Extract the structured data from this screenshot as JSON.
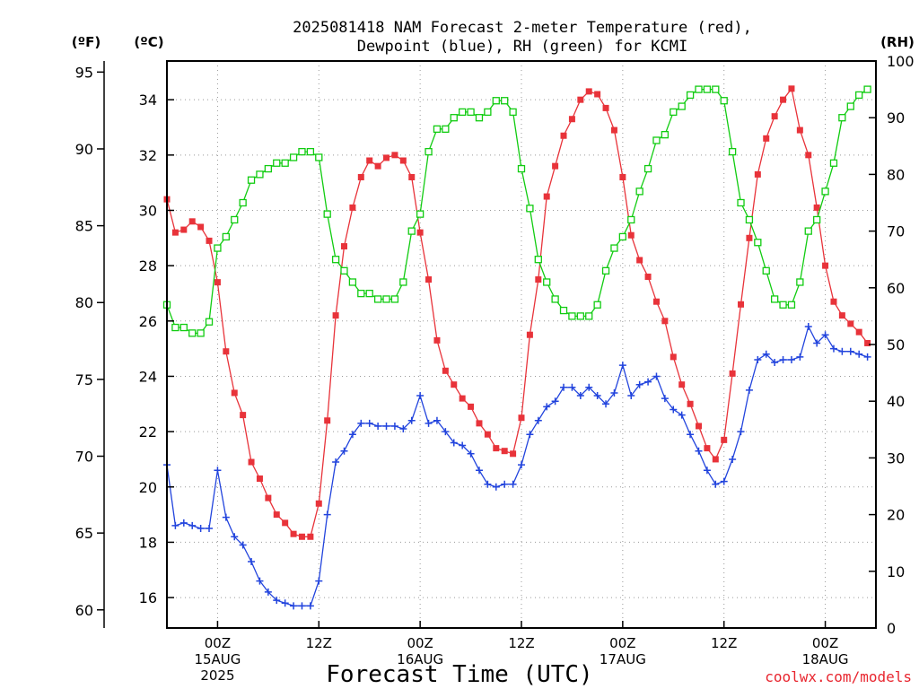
{
  "chart_data": {
    "type": "line",
    "title": [
      "2025081418 NAM Forecast 2-meter Temperature (red),",
      "Dewpoint (blue), RH (green) for KCMI"
    ],
    "units": {
      "fahrenheit": "(ºF)",
      "celsius": "(ºC)",
      "rh": "(RH)"
    },
    "xlabel": "Forecast Time (UTC)",
    "credit": "coolwx.com/models",
    "x_ticks": [
      {
        "hour": 6,
        "lines": [
          "00Z",
          "15AUG",
          "2025"
        ]
      },
      {
        "hour": 18,
        "lines": [
          "12Z"
        ]
      },
      {
        "hour": 30,
        "lines": [
          "00Z",
          "16AUG"
        ]
      },
      {
        "hour": 42,
        "lines": [
          "12Z"
        ]
      },
      {
        "hour": 54,
        "lines": [
          "00Z",
          "17AUG"
        ]
      },
      {
        "hour": 66,
        "lines": [
          "12Z"
        ]
      },
      {
        "hour": 78,
        "lines": [
          "00Z",
          "18AUG"
        ]
      }
    ],
    "x_range_hours": [
      0,
      84
    ],
    "x_origin_label": "2025081418",
    "left_axis_c": {
      "ticks": [
        16,
        18,
        20,
        22,
        24,
        26,
        28,
        30,
        32,
        34
      ],
      "range": [
        14.9,
        35.4
      ]
    },
    "left_axis_f": {
      "ticks": [
        60,
        65,
        70,
        75,
        80,
        85,
        90,
        95
      ]
    },
    "right_axis_rh": {
      "ticks": [
        0,
        10,
        20,
        30,
        40,
        50,
        60,
        70,
        80,
        90,
        100
      ],
      "range": [
        0,
        100
      ]
    },
    "grid": "dotted",
    "series": [
      {
        "key": "temperature",
        "color": "#e8333a",
        "marker": "filled-square",
        "axis": "celsius",
        "values": [
          30.4,
          29.2,
          29.3,
          29.6,
          29.4,
          28.9,
          27.4,
          24.9,
          23.4,
          22.6,
          20.9,
          20.3,
          19.6,
          19.0,
          18.7,
          18.3,
          18.2,
          18.2,
          19.4,
          22.4,
          26.2,
          28.7,
          30.1,
          31.2,
          31.8,
          31.6,
          31.9,
          32.0,
          31.8,
          31.2,
          29.2,
          27.5,
          25.3,
          24.2,
          23.7,
          23.2,
          22.9,
          22.3,
          21.9,
          21.4,
          21.3,
          21.2,
          22.5,
          25.5,
          27.5,
          30.5,
          31.6,
          32.7,
          33.3,
          34.0,
          34.3,
          34.2,
          33.7,
          32.9,
          31.2,
          29.1,
          28.2,
          27.6,
          26.7,
          26.0,
          24.7,
          23.7,
          23.0,
          22.2,
          21.4,
          21.0,
          21.7,
          24.1,
          26.6,
          29.0,
          31.3,
          32.6,
          33.4,
          34.0,
          34.4,
          32.9,
          32.0,
          30.1,
          28.0,
          26.7,
          26.2,
          25.9,
          25.6,
          25.2
        ],
        "x_hours": [
          0,
          1,
          2,
          3,
          4,
          5,
          6,
          7,
          8,
          9,
          10,
          11,
          12,
          13,
          14,
          15,
          16,
          17,
          18,
          19,
          20,
          21,
          22,
          23,
          24,
          25,
          26,
          27,
          28,
          29,
          30,
          31,
          32,
          33,
          34,
          35,
          36,
          37,
          38,
          39,
          40,
          41,
          42,
          43,
          44,
          45,
          46,
          47,
          48,
          49,
          50,
          51,
          52,
          53,
          54,
          55,
          56,
          57,
          58,
          59,
          60,
          61,
          62,
          63,
          64,
          65,
          66,
          67,
          68,
          69,
          70,
          71,
          72,
          73,
          74,
          75,
          76,
          77,
          78,
          79,
          80,
          81,
          82,
          83
        ]
      },
      {
        "key": "dewpoint",
        "color": "#2244dd",
        "marker": "plus",
        "axis": "celsius",
        "values": [
          20.8,
          18.6,
          18.7,
          18.6,
          18.5,
          18.5,
          20.6,
          18.9,
          18.2,
          17.9,
          17.3,
          16.6,
          16.2,
          15.9,
          15.8,
          15.7,
          15.7,
          15.7,
          16.6,
          19.0,
          20.9,
          21.3,
          21.9,
          22.3,
          22.3,
          22.2,
          22.2,
          22.2,
          22.1,
          22.4,
          23.3,
          22.3,
          22.4,
          22.0,
          21.6,
          21.5,
          21.2,
          20.6,
          20.1,
          20.0,
          20.1,
          20.1,
          20.8,
          21.9,
          22.4,
          22.9,
          23.1,
          23.6,
          23.6,
          23.3,
          23.6,
          23.3,
          23.0,
          23.4,
          24.4,
          23.3,
          23.7,
          23.8,
          24.0,
          23.2,
          22.8,
          22.6,
          21.9,
          21.3,
          20.6,
          20.1,
          20.2,
          21.0,
          22.0,
          23.5,
          24.6,
          24.8,
          24.5,
          24.6,
          24.6,
          24.7,
          25.8,
          25.2,
          25.5,
          25.0,
          24.9,
          24.9,
          24.8,
          24.7
        ],
        "x_hours": [
          0,
          1,
          2,
          3,
          4,
          5,
          6,
          7,
          8,
          9,
          10,
          11,
          12,
          13,
          14,
          15,
          16,
          17,
          18,
          19,
          20,
          21,
          22,
          23,
          24,
          25,
          26,
          27,
          28,
          29,
          30,
          31,
          32,
          33,
          34,
          35,
          36,
          37,
          38,
          39,
          40,
          41,
          42,
          43,
          44,
          45,
          46,
          47,
          48,
          49,
          50,
          51,
          52,
          53,
          54,
          55,
          56,
          57,
          58,
          59,
          60,
          61,
          62,
          63,
          64,
          65,
          66,
          67,
          68,
          69,
          70,
          71,
          72,
          73,
          74,
          75,
          76,
          77,
          78,
          79,
          80,
          81,
          82,
          83
        ]
      },
      {
        "key": "rh",
        "color": "#11cc11",
        "marker": "open-square",
        "axis": "rh",
        "values": [
          57,
          53,
          53,
          52,
          52,
          54,
          67,
          69,
          72,
          75,
          79,
          80,
          81,
          82,
          82,
          83,
          84,
          84,
          83,
          73,
          65,
          63,
          61,
          59,
          59,
          58,
          58,
          58,
          61,
          70,
          73,
          84,
          88,
          88,
          90,
          91,
          91,
          90,
          91,
          93,
          93,
          91,
          81,
          74,
          65,
          61,
          58,
          56,
          55,
          55,
          55,
          57,
          63,
          67,
          69,
          72,
          77,
          81,
          86,
          87,
          91,
          92,
          94,
          95,
          95,
          95,
          93,
          84,
          75,
          72,
          68,
          63,
          58,
          57,
          57,
          61,
          70,
          72,
          77,
          82,
          90,
          92,
          94,
          95
        ],
        "x_hours": [
          0,
          1,
          2,
          3,
          4,
          5,
          6,
          7,
          8,
          9,
          10,
          11,
          12,
          13,
          14,
          15,
          16,
          17,
          18,
          19,
          20,
          21,
          22,
          23,
          24,
          25,
          26,
          27,
          28,
          29,
          30,
          31,
          32,
          33,
          34,
          35,
          36,
          37,
          38,
          39,
          40,
          41,
          42,
          43,
          44,
          45,
          46,
          47,
          48,
          49,
          50,
          51,
          52,
          53,
          54,
          55,
          56,
          57,
          58,
          59,
          60,
          61,
          62,
          63,
          64,
          65,
          66,
          67,
          68,
          69,
          70,
          71,
          72,
          73,
          74,
          75,
          76,
          77,
          78,
          79,
          80,
          81,
          82,
          83
        ]
      }
    ]
  }
}
